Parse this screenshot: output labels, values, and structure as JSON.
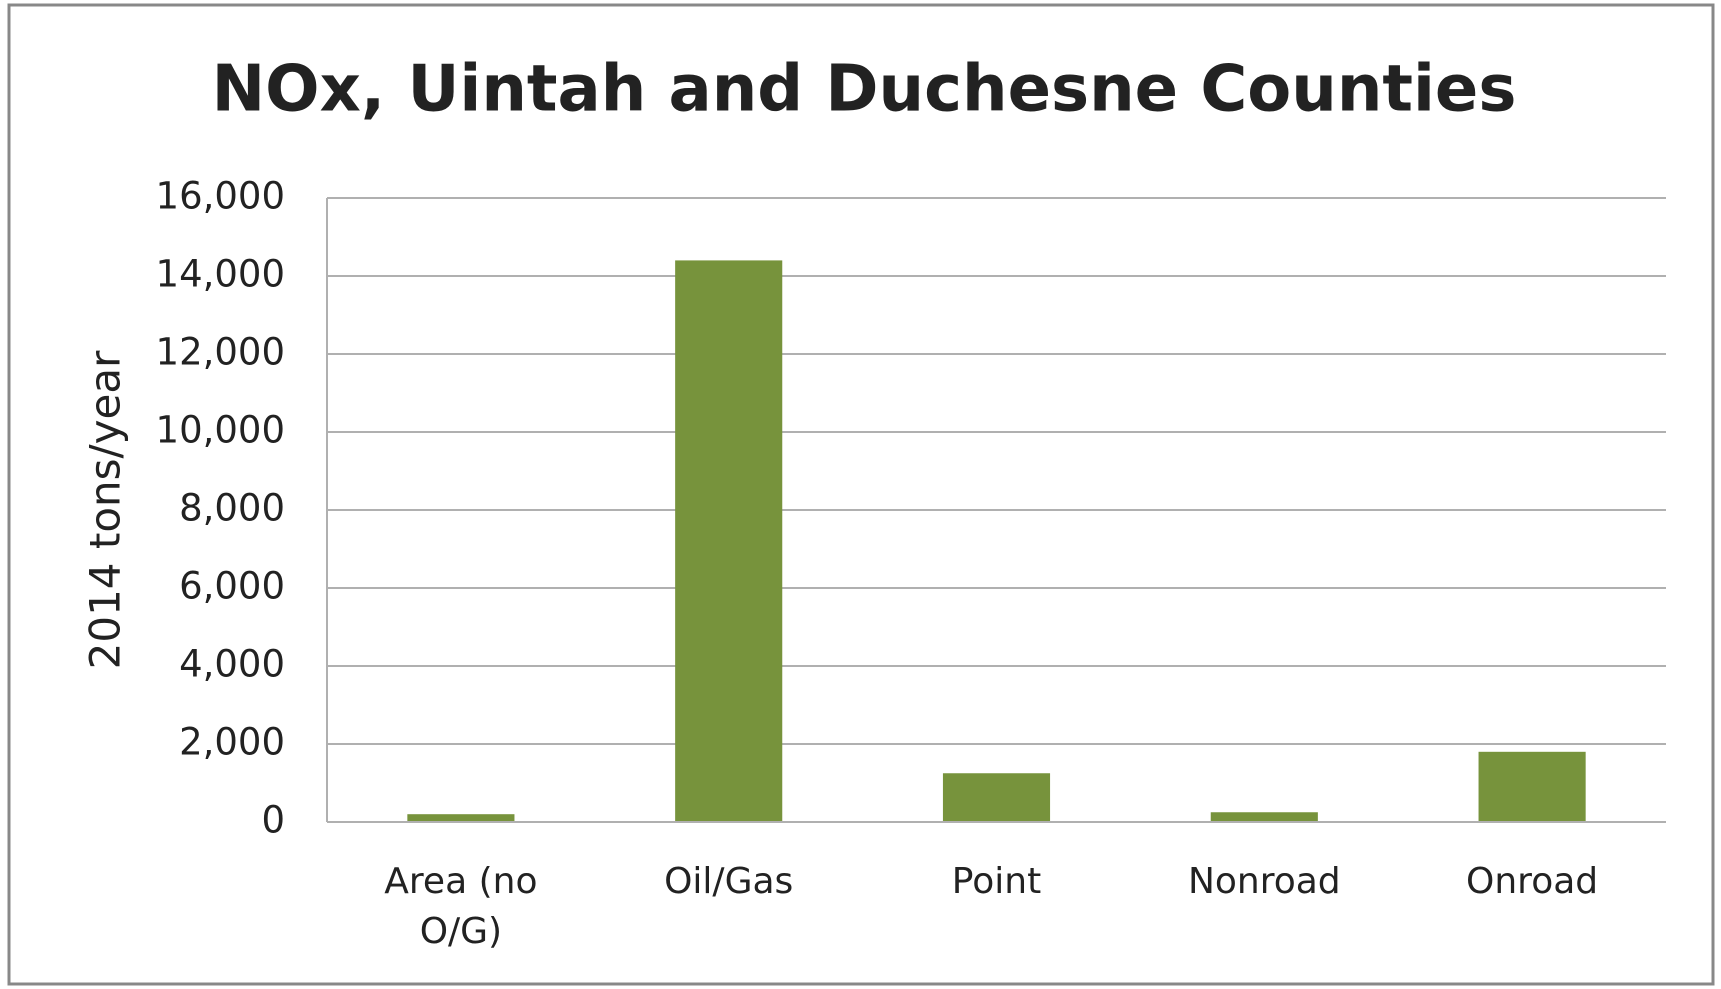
{
  "chart_data": {
    "type": "bar",
    "title": "NOx, Uintah and Duchesne Counties",
    "y_label": "2014 tons/year",
    "categories": [
      "Area (no O/G)",
      "Oil/Gas",
      "Point",
      "Nonroad",
      "Onroad"
    ],
    "values": [
      200,
      14400,
      1250,
      250,
      1800
    ],
    "color": "#77933c",
    "ylim": [
      0,
      16000
    ],
    "yticks": [
      0,
      {
        "value": 2000,
        "label": "2,000"
      },
      {
        "value": 4000,
        "label": "4,000"
      },
      {
        "value": 6000,
        "label": "6,000"
      },
      {
        "value": 8000,
        "label": "8,000"
      },
      {
        "value": 10000,
        "label": "10,000"
      },
      {
        "value": 12000,
        "label": "12,000"
      },
      {
        "value": 14000,
        "label": "14,000"
      },
      {
        "value": 16000,
        "label": "16,000"
      }
    ],
    "grid": true
  }
}
